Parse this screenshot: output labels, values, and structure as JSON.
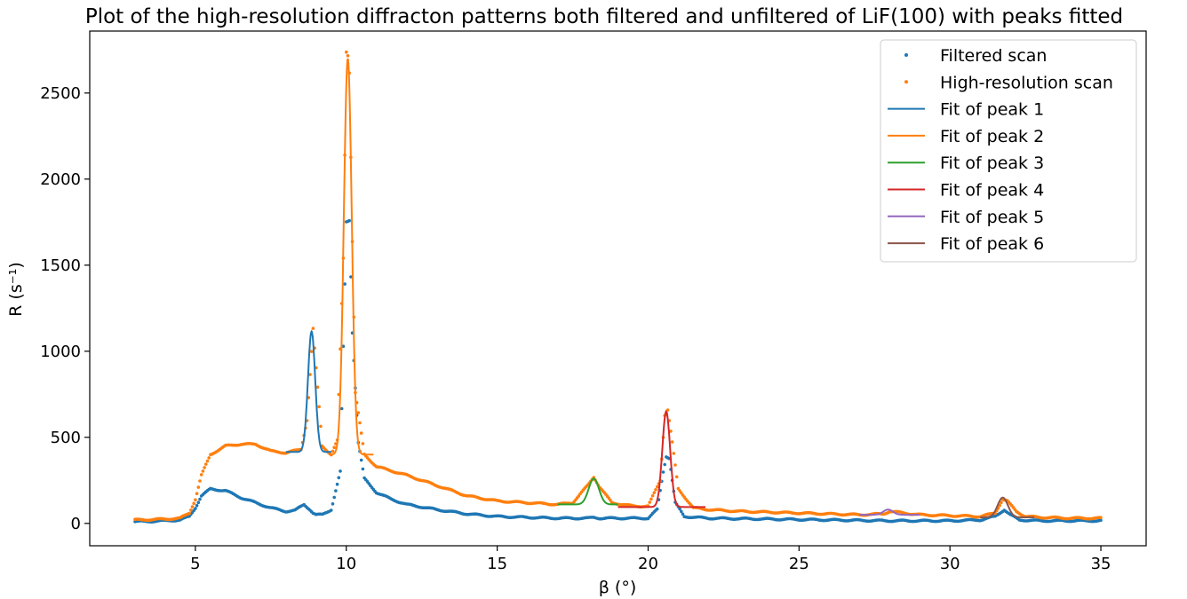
{
  "chart_data": {
    "type": "scatter",
    "title": "Plot of the high-resolution diffracton patterns both filtered and unfiltered of LiF(100) with peaks fitted",
    "xlabel": "β (°)",
    "ylabel": "R (s⁻¹)",
    "xlim": [
      1.5,
      36.5
    ],
    "ylim": [
      -130,
      2860
    ],
    "xticks": [
      5,
      10,
      15,
      20,
      25,
      30,
      35
    ],
    "yticks": [
      0,
      500,
      1000,
      1500,
      2000,
      2500
    ],
    "grid": false,
    "legend_position": "top-right",
    "colors": {
      "filtered": "#1f77b4",
      "high_res": "#ff7f0e",
      "fit1": "#1f77b4",
      "fit2": "#ff7f0e",
      "fit3": "#2ca02c",
      "fit4": "#d62728",
      "fit5": "#9467bd",
      "fit6": "#8c564b"
    },
    "scatter_series": [
      {
        "name": "Filtered scan",
        "color": "#1f77b4",
        "x": [
          3.0,
          3.5,
          4.0,
          4.5,
          4.8,
          5.0,
          5.2,
          5.5,
          6.0,
          6.5,
          7.0,
          7.5,
          8.0,
          8.3,
          8.6,
          8.8,
          8.9,
          9.0,
          9.2,
          9.5,
          9.8,
          10.0,
          10.1,
          10.2,
          10.4,
          10.6,
          11.0,
          11.5,
          12.0,
          13.0,
          14.0,
          15.0,
          16.0,
          17.0,
          18.0,
          18.2,
          18.4,
          19.0,
          20.0,
          20.3,
          20.5,
          20.6,
          20.7,
          20.9,
          21.2,
          22.0,
          24.0,
          26.0,
          28.0,
          30.0,
          31.0,
          31.5,
          31.8,
          32.0,
          32.3,
          33.0,
          34.0,
          35.0
        ],
        "y": [
          10,
          12,
          15,
          20,
          40,
          90,
          160,
          200,
          190,
          150,
          120,
          90,
          70,
          75,
          110,
          80,
          60,
          50,
          50,
          80,
          300,
          1750,
          1760,
          1110,
          470,
          260,
          180,
          140,
          110,
          80,
          55,
          40,
          35,
          30,
          30,
          35,
          30,
          30,
          30,
          80,
          300,
          390,
          380,
          120,
          40,
          30,
          25,
          20,
          15,
          15,
          20,
          40,
          80,
          50,
          20,
          15,
          15,
          15
        ]
      },
      {
        "name": "High-resolution scan",
        "color": "#ff7f0e",
        "x": [
          3.0,
          3.5,
          4.0,
          4.5,
          4.8,
          5.0,
          5.2,
          5.5,
          6.0,
          6.5,
          7.0,
          7.5,
          8.0,
          8.5,
          8.7,
          8.9,
          9.0,
          9.2,
          9.5,
          9.7,
          9.9,
          10.0,
          10.05,
          10.1,
          10.2,
          10.3,
          10.6,
          11.0,
          12.0,
          13.0,
          14.0,
          15.0,
          16.0,
          17.0,
          17.5,
          18.0,
          18.2,
          18.4,
          18.8,
          19.5,
          20.0,
          20.4,
          20.55,
          20.65,
          20.8,
          21.0,
          21.5,
          22.0,
          23.0,
          24.0,
          25.0,
          26.0,
          27.0,
          27.8,
          28.0,
          28.5,
          29.0,
          30.0,
          31.0,
          31.5,
          31.75,
          31.9,
          32.2,
          32.5,
          33.0,
          34.0,
          35.0
        ],
        "y": [
          20,
          22,
          25,
          30,
          60,
          140,
          280,
          400,
          450,
          460,
          460,
          420,
          410,
          430,
          600,
          1130,
          900,
          450,
          400,
          480,
          1540,
          2740,
          2720,
          2620,
          1640,
          760,
          400,
          330,
          280,
          220,
          160,
          130,
          120,
          110,
          120,
          220,
          270,
          210,
          120,
          100,
          100,
          250,
          630,
          660,
          470,
          200,
          90,
          80,
          70,
          65,
          60,
          55,
          50,
          55,
          70,
          60,
          50,
          45,
          40,
          60,
          140,
          130,
          70,
          40,
          35,
          30,
          30
        ]
      }
    ],
    "fit_series": [
      {
        "name": "Fit of peak 1",
        "color": "#1f77b4",
        "x0": 8.0,
        "x1": 9.5,
        "center": 8.85,
        "width": 0.12,
        "amplitude": 700,
        "baseline": 415
      },
      {
        "name": "Fit of peak 2",
        "color": "#ff7f0e",
        "x0": 9.5,
        "x1": 10.9,
        "center": 10.05,
        "width": 0.13,
        "amplitude": 2300,
        "baseline": 400
      },
      {
        "name": "Fit of peak 3",
        "color": "#2ca02c",
        "x0": 17.0,
        "x1": 19.0,
        "center": 18.2,
        "width": 0.17,
        "amplitude": 150,
        "baseline": 110
      },
      {
        "name": "Fit of peak 4",
        "color": "#d62728",
        "x0": 19.0,
        "x1": 21.9,
        "center": 20.6,
        "width": 0.13,
        "amplitude": 555,
        "baseline": 95
      },
      {
        "name": "Fit of peak 5",
        "color": "#9467bd",
        "x0": 27.0,
        "x1": 29.0,
        "center": 27.95,
        "width": 0.16,
        "amplitude": 30,
        "baseline": 50
      },
      {
        "name": "Fit of peak 6",
        "color": "#8c564b",
        "x0": 31.0,
        "x1": 32.8,
        "center": 31.75,
        "width": 0.17,
        "amplitude": 115,
        "baseline": 35
      }
    ]
  }
}
